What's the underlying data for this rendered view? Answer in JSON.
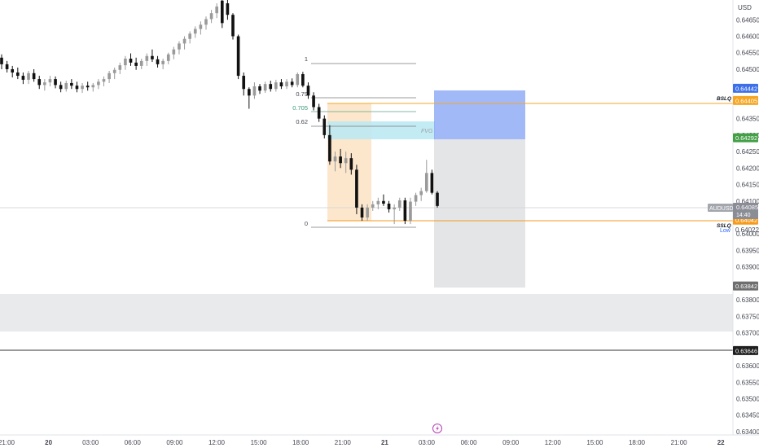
{
  "currency": "USD",
  "symbol": {
    "name": "AUDUSD",
    "price": "0.64085",
    "countdown": "14:40",
    "low_label": "Low",
    "low_value": "0.64022"
  },
  "level_labels": {
    "bslq": "BSLQ",
    "sslq": "SSLQ",
    "fvg": "FVG"
  },
  "fib_labels": [
    "1",
    "0.79",
    "0.705",
    "0.62",
    "0"
  ],
  "price_ticks": [
    "0.64650",
    "0.64600",
    "0.64550",
    "0.64500",
    "0.64350",
    "0.64300",
    "0.64250",
    "0.64200",
    "0.64150",
    "0.64100",
    "0.64000",
    "0.63950",
    "0.63900",
    "0.63800",
    "0.63750",
    "0.63700",
    "0.63600",
    "0.63550",
    "0.63500",
    "0.63450",
    "0.63400"
  ],
  "price_tags": [
    {
      "label": "0.64442",
      "color": "#3d70e8"
    },
    {
      "label": "0.64405",
      "color": "#f5a623"
    },
    {
      "label": "0.64292",
      "color": "#43a047"
    },
    {
      "label": "0.64042",
      "color": "#f59a1b"
    },
    {
      "label": "0.63842",
      "color": "#6e6e6e"
    },
    {
      "label": "0.63646",
      "color": "#1e1e1e"
    }
  ],
  "time_ticks": [
    "21:00",
    "20",
    "03:00",
    "06:00",
    "09:00",
    "12:00",
    "15:00",
    "18:00",
    "21:00",
    "21",
    "03:00",
    "06:00",
    "09:00",
    "12:00",
    "15:00",
    "18:00",
    "21:00",
    "22"
  ],
  "chart_data": {
    "type": "candlestick",
    "symbol": "AUDUSD",
    "currency": "USD",
    "y_range": [
      0.6339,
      0.6471
    ],
    "x_time_labels": [
      "21:00",
      "20",
      "03:00",
      "06:00",
      "09:00",
      "12:00",
      "15:00",
      "18:00",
      "21:00",
      "21",
      "03:00",
      "06:00",
      "09:00",
      "12:00",
      "15:00",
      "18:00",
      "21:00",
      "22"
    ],
    "last_price": 0.64085,
    "levels": {
      "bslq": 0.64405,
      "sslq": 0.64042,
      "liquidity_line": 0.63646,
      "fvg_top": 0.6434,
      "fvg_bottom": 0.64292,
      "target_top": 0.64442,
      "stop_bottom": 0.63842,
      "consolidation_zone": [
        0.6371,
        0.63825
      ]
    },
    "fib": [
      {
        "level": "1",
        "price": 0.64525
      },
      {
        "level": "0.79",
        "price": 0.64395
      },
      {
        "level": "0.705",
        "price": 0.64342
      },
      {
        "level": "0.62",
        "price": 0.6429
      },
      {
        "level": "0",
        "price": 0.6402
      }
    ],
    "candles": [
      {
        "o": 0.64535,
        "h": 0.64545,
        "l": 0.645,
        "c": 0.64515
      },
      {
        "o": 0.64515,
        "h": 0.64525,
        "l": 0.6449,
        "c": 0.645
      },
      {
        "o": 0.645,
        "h": 0.6451,
        "l": 0.64475,
        "c": 0.6449
      },
      {
        "o": 0.6449,
        "h": 0.64505,
        "l": 0.6447,
        "c": 0.6448
      },
      {
        "o": 0.6448,
        "h": 0.6449,
        "l": 0.64455,
        "c": 0.64468
      },
      {
        "o": 0.64468,
        "h": 0.64495,
        "l": 0.64455,
        "c": 0.64488
      },
      {
        "o": 0.64488,
        "h": 0.645,
        "l": 0.64462,
        "c": 0.6447
      },
      {
        "o": 0.6447,
        "h": 0.6448,
        "l": 0.6444,
        "c": 0.64452
      },
      {
        "o": 0.64452,
        "h": 0.6447,
        "l": 0.64435,
        "c": 0.6446
      },
      {
        "o": 0.6446,
        "h": 0.6448,
        "l": 0.64448,
        "c": 0.6447
      },
      {
        "o": 0.6447,
        "h": 0.64478,
        "l": 0.64442,
        "c": 0.64452
      },
      {
        "o": 0.64452,
        "h": 0.64462,
        "l": 0.6443,
        "c": 0.6444
      },
      {
        "o": 0.6444,
        "h": 0.64465,
        "l": 0.64432,
        "c": 0.64458
      },
      {
        "o": 0.64458,
        "h": 0.6447,
        "l": 0.6444,
        "c": 0.6445
      },
      {
        "o": 0.6445,
        "h": 0.64462,
        "l": 0.6443,
        "c": 0.6444
      },
      {
        "o": 0.6444,
        "h": 0.64458,
        "l": 0.64428,
        "c": 0.6445
      },
      {
        "o": 0.6445,
        "h": 0.64462,
        "l": 0.64435,
        "c": 0.64445
      },
      {
        "o": 0.64445,
        "h": 0.64458,
        "l": 0.64432,
        "c": 0.64452
      },
      {
        "o": 0.64452,
        "h": 0.6447,
        "l": 0.6444,
        "c": 0.64462
      },
      {
        "o": 0.64462,
        "h": 0.64478,
        "l": 0.64448,
        "c": 0.6447
      },
      {
        "o": 0.6447,
        "h": 0.64495,
        "l": 0.64458,
        "c": 0.64488
      },
      {
        "o": 0.64488,
        "h": 0.64505,
        "l": 0.6447,
        "c": 0.64498
      },
      {
        "o": 0.64498,
        "h": 0.6452,
        "l": 0.64485,
        "c": 0.64512
      },
      {
        "o": 0.64512,
        "h": 0.6454,
        "l": 0.64498,
        "c": 0.64532
      },
      {
        "o": 0.64532,
        "h": 0.64548,
        "l": 0.6451,
        "c": 0.6452
      },
      {
        "o": 0.6452,
        "h": 0.64535,
        "l": 0.64498,
        "c": 0.6451
      },
      {
        "o": 0.6451,
        "h": 0.64532,
        "l": 0.645,
        "c": 0.64525
      },
      {
        "o": 0.64525,
        "h": 0.64548,
        "l": 0.6451,
        "c": 0.6454
      },
      {
        "o": 0.6454,
        "h": 0.6456,
        "l": 0.64522,
        "c": 0.6453
      },
      {
        "o": 0.6453,
        "h": 0.6454,
        "l": 0.64505,
        "c": 0.64515
      },
      {
        "o": 0.64515,
        "h": 0.64532,
        "l": 0.645,
        "c": 0.64525
      },
      {
        "o": 0.64525,
        "h": 0.6455,
        "l": 0.64515,
        "c": 0.64545
      },
      {
        "o": 0.64545,
        "h": 0.64568,
        "l": 0.6453,
        "c": 0.6456
      },
      {
        "o": 0.6456,
        "h": 0.64585,
        "l": 0.64545,
        "c": 0.64578
      },
      {
        "o": 0.64578,
        "h": 0.646,
        "l": 0.6456,
        "c": 0.64592
      },
      {
        "o": 0.64592,
        "h": 0.64615,
        "l": 0.64578,
        "c": 0.64608
      },
      {
        "o": 0.64608,
        "h": 0.6463,
        "l": 0.64595,
        "c": 0.64622
      },
      {
        "o": 0.64622,
        "h": 0.64645,
        "l": 0.64605,
        "c": 0.64635
      },
      {
        "o": 0.64635,
        "h": 0.6466,
        "l": 0.6462,
        "c": 0.64652
      },
      {
        "o": 0.64652,
        "h": 0.6468,
        "l": 0.6464,
        "c": 0.6467
      },
      {
        "o": 0.6467,
        "h": 0.647,
        "l": 0.64655,
        "c": 0.6469
      },
      {
        "o": 0.64708,
        "h": 0.64712,
        "l": 0.64625,
        "c": 0.6464
      },
      {
        "o": 0.647,
        "h": 0.64712,
        "l": 0.6465,
        "c": 0.64665
      },
      {
        "o": 0.64665,
        "h": 0.6467,
        "l": 0.6459,
        "c": 0.646
      },
      {
        "o": 0.646,
        "h": 0.64605,
        "l": 0.6447,
        "c": 0.6448
      },
      {
        "o": 0.6448,
        "h": 0.6449,
        "l": 0.6442,
        "c": 0.6444
      },
      {
        "o": 0.6444,
        "h": 0.64445,
        "l": 0.6438,
        "c": 0.6442
      },
      {
        "o": 0.6442,
        "h": 0.6446,
        "l": 0.6441,
        "c": 0.64448
      },
      {
        "o": 0.64448,
        "h": 0.64455,
        "l": 0.64425,
        "c": 0.64435
      },
      {
        "o": 0.64435,
        "h": 0.64462,
        "l": 0.64428,
        "c": 0.64455
      },
      {
        "o": 0.64455,
        "h": 0.64465,
        "l": 0.64432,
        "c": 0.6444
      },
      {
        "o": 0.6444,
        "h": 0.64468,
        "l": 0.64432,
        "c": 0.6446
      },
      {
        "o": 0.6446,
        "h": 0.6447,
        "l": 0.6444,
        "c": 0.64448
      },
      {
        "o": 0.64448,
        "h": 0.6447,
        "l": 0.6444,
        "c": 0.64462
      },
      {
        "o": 0.64462,
        "h": 0.64472,
        "l": 0.64445,
        "c": 0.64452
      },
      {
        "o": 0.64452,
        "h": 0.6449,
        "l": 0.64445,
        "c": 0.64485
      },
      {
        "o": 0.64485,
        "h": 0.64492,
        "l": 0.64445,
        "c": 0.6445
      },
      {
        "o": 0.6445,
        "h": 0.6446,
        "l": 0.6441,
        "c": 0.6442
      },
      {
        "o": 0.6442,
        "h": 0.6443,
        "l": 0.64375,
        "c": 0.64385
      },
      {
        "o": 0.64385,
        "h": 0.64395,
        "l": 0.6434,
        "c": 0.6435
      },
      {
        "o": 0.6435,
        "h": 0.6436,
        "l": 0.6429,
        "c": 0.643
      },
      {
        "o": 0.643,
        "h": 0.6433,
        "l": 0.6421,
        "c": 0.6422
      },
      {
        "o": 0.6422,
        "h": 0.6425,
        "l": 0.6419,
        "c": 0.64235
      },
      {
        "o": 0.64235,
        "h": 0.64258,
        "l": 0.642,
        "c": 0.64215
      },
      {
        "o": 0.64215,
        "h": 0.6425,
        "l": 0.64185,
        "c": 0.6423
      },
      {
        "o": 0.6423,
        "h": 0.64245,
        "l": 0.6418,
        "c": 0.64195
      },
      {
        "o": 0.64195,
        "h": 0.6421,
        "l": 0.6406,
        "c": 0.6408
      },
      {
        "o": 0.6408,
        "h": 0.6409,
        "l": 0.6404,
        "c": 0.6405
      },
      {
        "o": 0.6405,
        "h": 0.6409,
        "l": 0.6404,
        "c": 0.6408
      },
      {
        "o": 0.6408,
        "h": 0.641,
        "l": 0.6407,
        "c": 0.6409
      },
      {
        "o": 0.6409,
        "h": 0.6411,
        "l": 0.64075,
        "c": 0.641
      },
      {
        "o": 0.641,
        "h": 0.6412,
        "l": 0.64085,
        "c": 0.64092
      },
      {
        "o": 0.64092,
        "h": 0.641,
        "l": 0.64065,
        "c": 0.64075
      },
      {
        "o": 0.64075,
        "h": 0.6409,
        "l": 0.6403,
        "c": 0.6408
      },
      {
        "o": 0.6408,
        "h": 0.6411,
        "l": 0.6407,
        "c": 0.64102
      },
      {
        "o": 0.64102,
        "h": 0.6411,
        "l": 0.6403,
        "c": 0.6404
      },
      {
        "o": 0.6404,
        "h": 0.6411,
        "l": 0.6403,
        "c": 0.64098
      },
      {
        "o": 0.64098,
        "h": 0.64125,
        "l": 0.64085,
        "c": 0.64118
      },
      {
        "o": 0.64118,
        "h": 0.6414,
        "l": 0.641,
        "c": 0.6413
      },
      {
        "o": 0.6413,
        "h": 0.64225,
        "l": 0.64125,
        "c": 0.64185
      },
      {
        "o": 0.64185,
        "h": 0.64195,
        "l": 0.6412,
        "c": 0.64125
      },
      {
        "o": 0.64125,
        "h": 0.6413,
        "l": 0.6408,
        "c": 0.64085
      }
    ]
  }
}
